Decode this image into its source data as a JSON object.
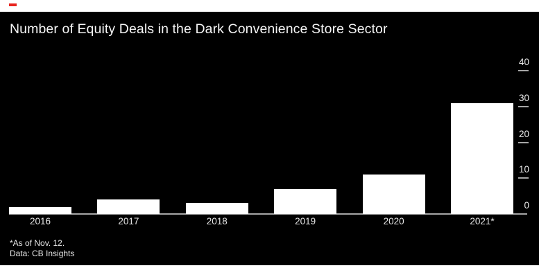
{
  "chart": {
    "title": "Number of Equity Deals in the Dark Convenience Store Sector",
    "footnote_line1": "*As of Nov. 12.",
    "footnote_line2": "Data: CB Insights",
    "colors": {
      "panel_bg": "#000000",
      "bar_fill": "#ffffff",
      "axis_line": "#a6a6a6",
      "text": "#f2f2f2",
      "accent_red": "#e8251f"
    }
  },
  "chart_data": {
    "type": "bar",
    "categories": [
      "2016",
      "2017",
      "2018",
      "2019",
      "2020",
      "2021*"
    ],
    "values": [
      2,
      4,
      3,
      7,
      11,
      31
    ],
    "title": "Number of Equity Deals in the Dark Convenience Store Sector",
    "xlabel": "",
    "ylabel": "",
    "yticks": [
      0,
      10,
      20,
      30,
      40
    ],
    "ylim": [
      0,
      40
    ],
    "legend": "none",
    "gridlines": false,
    "axis_side": "right",
    "background": "black",
    "footnotes": [
      "*As of Nov. 12.",
      "Data: CB Insights"
    ]
  }
}
